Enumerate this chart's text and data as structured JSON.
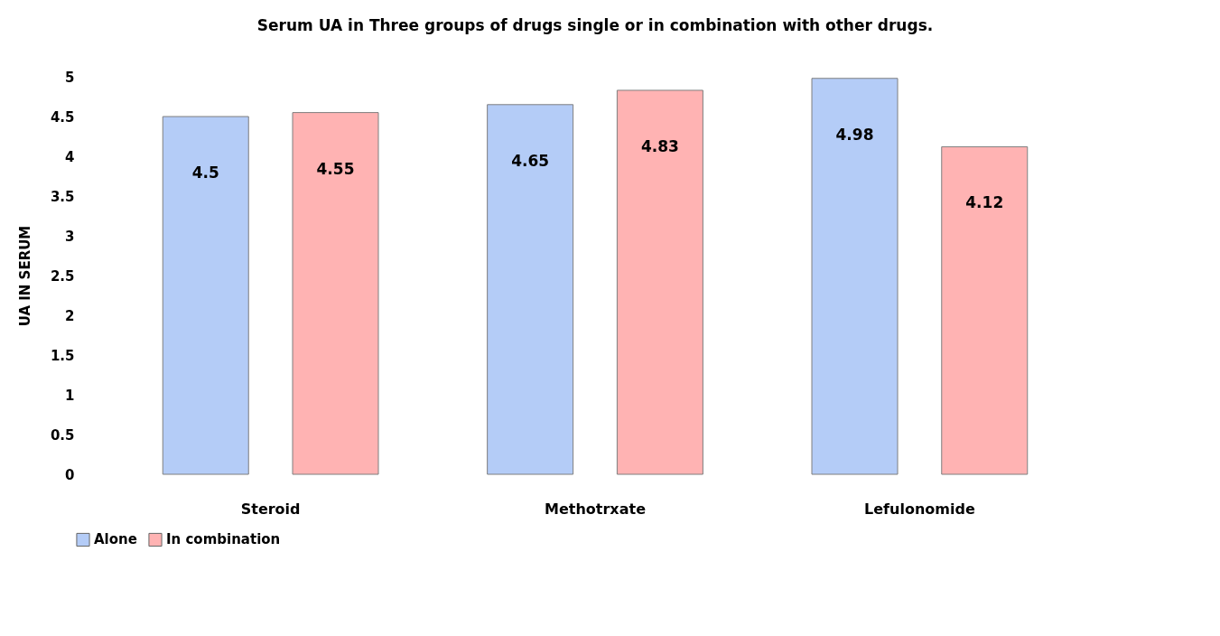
{
  "chart_data": {
    "type": "bar",
    "title": "Serum UA in Three groups of drugs single or in combination with other drugs.",
    "ylabel": "UA IN SERUM",
    "categories": [
      "Steroid",
      "Methotrxate",
      "Lefulonomide"
    ],
    "series": [
      {
        "name": "Alone",
        "color": "#b4ccf7",
        "values": [
          4.5,
          4.65,
          4.98
        ]
      },
      {
        "name": "In combination",
        "color": "#ffb3b3",
        "values": [
          4.55,
          4.83,
          4.12
        ]
      }
    ],
    "ylim": [
      0,
      5
    ],
    "yticks": [
      0,
      0.5,
      1,
      1.5,
      2,
      2.5,
      3,
      3.5,
      4,
      4.5,
      5
    ],
    "data_labels": true,
    "legend": "bottom",
    "grid": false
  }
}
